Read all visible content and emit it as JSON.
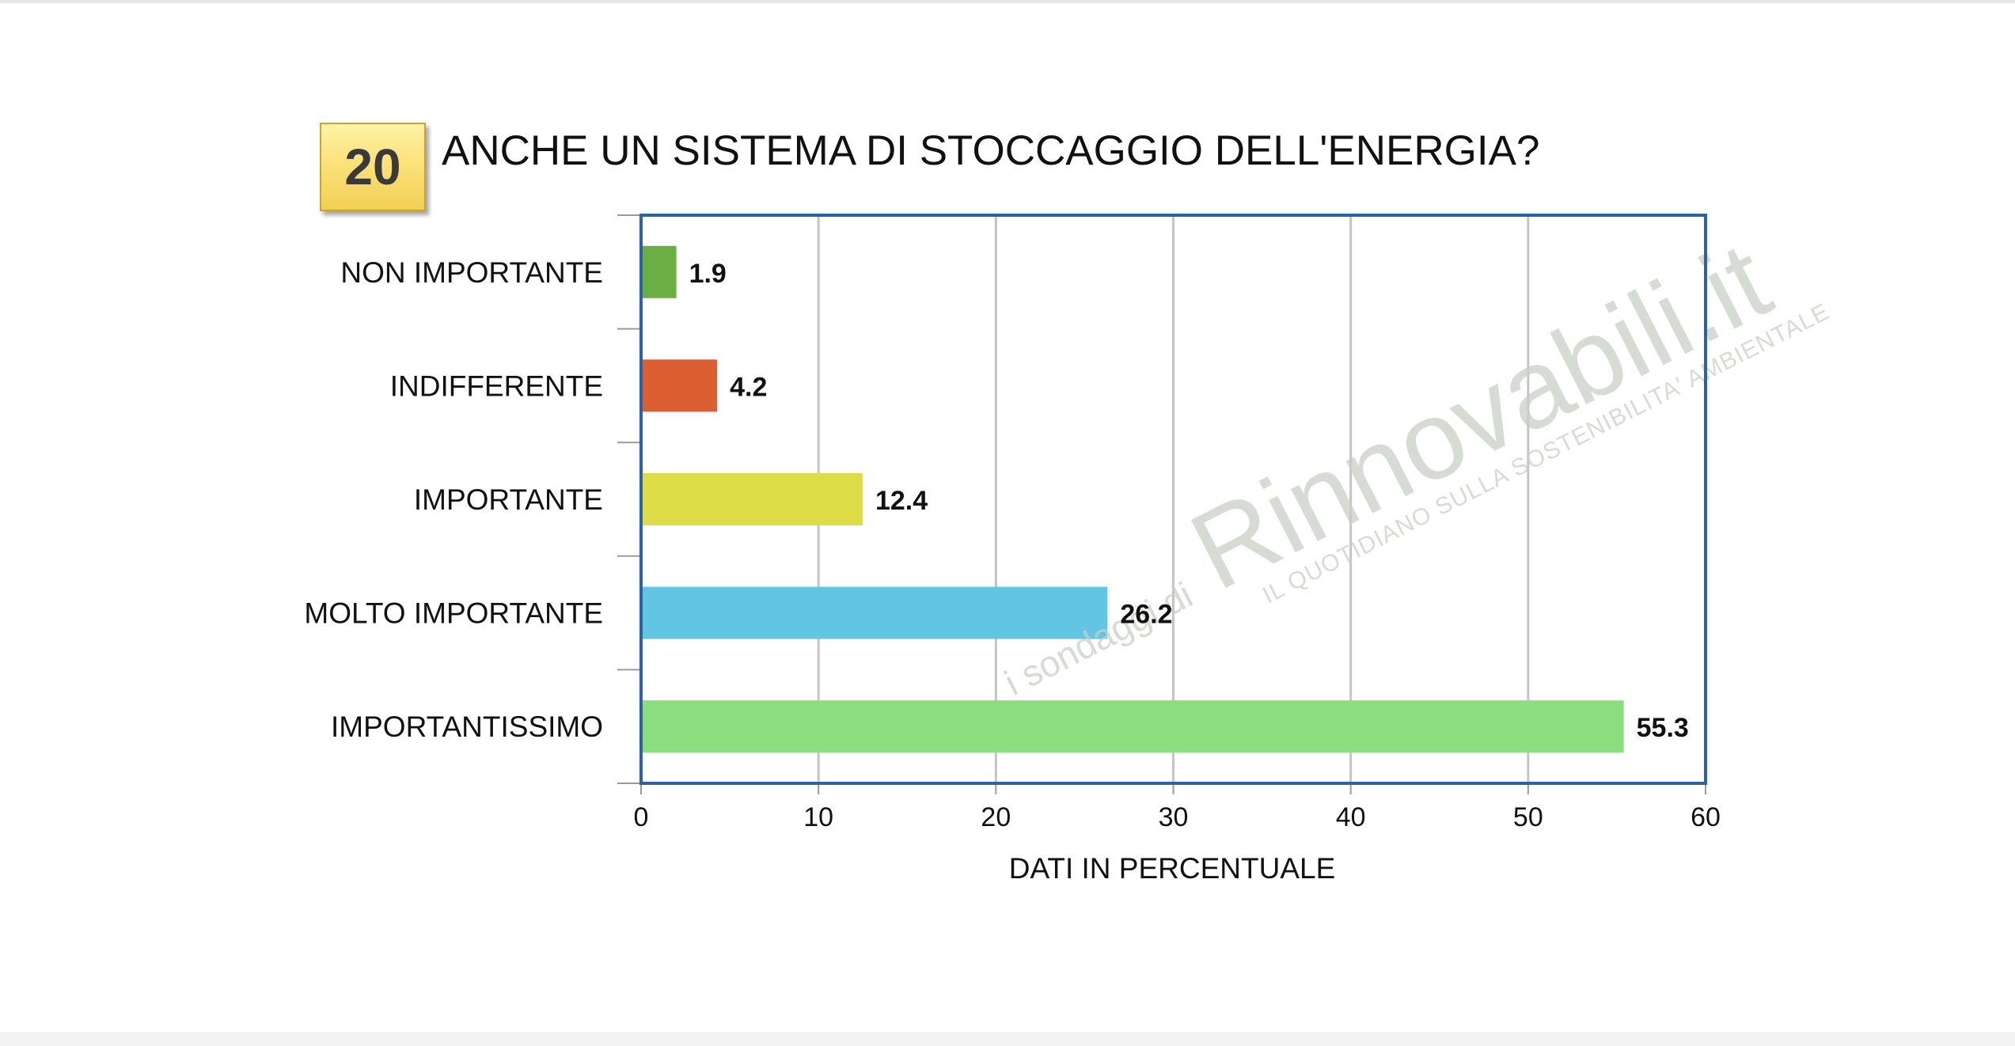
{
  "question_number": "20",
  "chart_data": {
    "type": "bar",
    "orientation": "horizontal",
    "title": "ANCHE UN SISTEMA DI STOCCAGGIO DELL'ENERGIA?",
    "xlabel": "DATI IN PERCENTUALE",
    "xlim": [
      0,
      60
    ],
    "ticks": [
      0,
      10,
      20,
      30,
      40,
      50,
      60
    ],
    "grid": true,
    "categories": [
      "NON IMPORTANTE",
      "INDIFFERENTE",
      "IMPORTANTE",
      "MOLTO IMPORTANTE",
      "IMPORTANTISSIMO"
    ],
    "values": [
      1.9,
      4.2,
      12.4,
      26.2,
      55.3
    ],
    "value_labels": [
      "1.9",
      "4.2",
      "12.4",
      "26.2",
      "55.3"
    ],
    "colors": [
      "#6aae44",
      "#dc5f33",
      "#dedd48",
      "#62c6e2",
      "#8bde7d"
    ]
  },
  "watermark": {
    "prefix": "i sondaggi di",
    "brand": "Rinnovabili.it",
    "tagline": "IL QUOTIDIANO SULLA SOSTENIBILITA' AMBIENTALE"
  }
}
